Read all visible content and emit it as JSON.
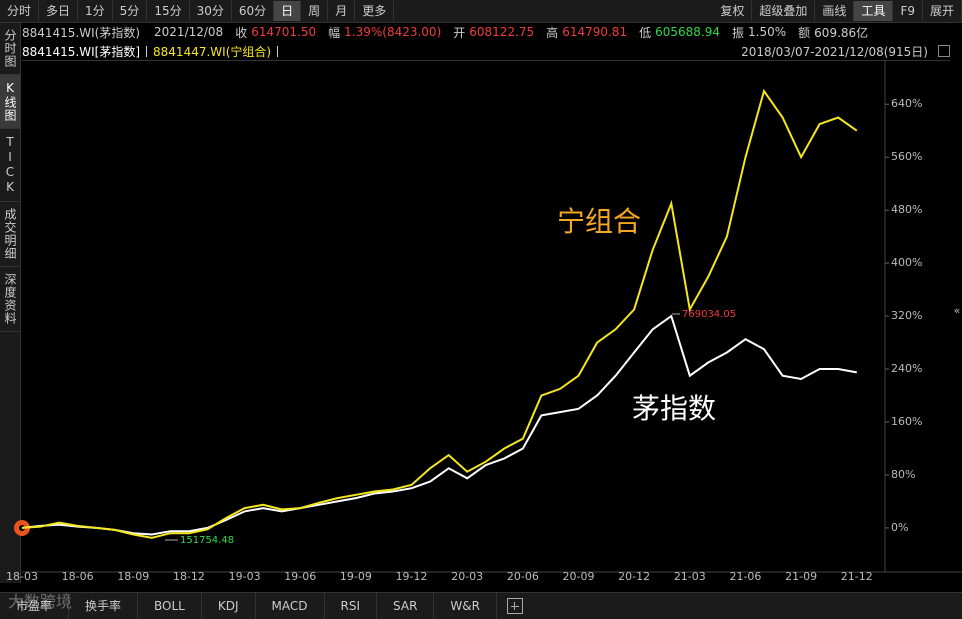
{
  "toolbar": {
    "left": [
      "分时",
      "多日",
      "1分",
      "5分",
      "15分",
      "30分",
      "60分",
      "日",
      "周",
      "月",
      "更多"
    ],
    "right": [
      "复权",
      "超级叠加",
      "画线",
      "工具",
      "F9",
      "展开"
    ]
  },
  "sidebar": [
    "分时图",
    "K线图",
    "TICK",
    "成交明细",
    "深度资料"
  ],
  "quote": {
    "code": "8841415.WI(茅指数)",
    "date": "2021/12/08",
    "fields": [
      {
        "label": "收",
        "value": "614701.50"
      },
      {
        "label": "幅",
        "value": "1.39%(8423.00)"
      },
      {
        "label": "开",
        "value": "608122.75"
      },
      {
        "label": "高",
        "value": "614790.81"
      },
      {
        "label": "低",
        "value": "605688.94"
      },
      {
        "label": "振",
        "value": "1.50%"
      },
      {
        "label": "额",
        "value": "609.86亿"
      }
    ]
  },
  "overlay": {
    "items": [
      "8841415.WI[茅指数]",
      "8841447.WI(宁组合)"
    ],
    "range": "2018/03/07-2021/12/08(915日)"
  },
  "chart_data": {
    "type": "line",
    "categories": [
      "18-03",
      null,
      null,
      "18-06",
      null,
      null,
      "18-09",
      null,
      null,
      "18-12",
      null,
      null,
      "19-03",
      null,
      null,
      "19-06",
      null,
      null,
      "19-09",
      null,
      null,
      "19-12",
      null,
      null,
      "20-03",
      null,
      null,
      "20-06",
      null,
      null,
      "20-09",
      null,
      null,
      "20-12",
      null,
      null,
      "21-03",
      null,
      null,
      "21-06",
      null,
      null,
      "21-09",
      null,
      null,
      "21-12"
    ],
    "series": [
      {
        "name": "茅指数",
        "color": "#ffffff",
        "values": [
          0,
          3,
          5,
          2,
          0,
          -3,
          -8,
          -10,
          -5,
          -5,
          0,
          12,
          25,
          30,
          25,
          30,
          35,
          40,
          45,
          52,
          55,
          60,
          70,
          90,
          75,
          95,
          105,
          120,
          170,
          175,
          180,
          200,
          230,
          265,
          300,
          320,
          230,
          250,
          265,
          285,
          270,
          230,
          225,
          240,
          240,
          235
        ]
      },
      {
        "name": "宁组合",
        "color": "#f5e61e",
        "values": [
          0,
          2,
          8,
          3,
          0,
          -3,
          -10,
          -15,
          -8,
          -8,
          -2,
          15,
          30,
          35,
          28,
          30,
          38,
          45,
          50,
          55,
          58,
          65,
          90,
          110,
          85,
          100,
          120,
          135,
          200,
          210,
          230,
          280,
          300,
          330,
          420,
          490,
          330,
          380,
          440,
          560,
          660,
          620,
          560,
          610,
          620,
          600
        ]
      }
    ],
    "ylim": [
      -56,
      734
    ],
    "yticks": [
      {
        "value": 0,
        "label": "0%"
      },
      {
        "value": 80,
        "label": "80%"
      },
      {
        "value": 160,
        "label": "160%"
      },
      {
        "value": 240,
        "label": "240%"
      },
      {
        "value": 320,
        "label": "320%"
      },
      {
        "value": 400,
        "label": "400%"
      },
      {
        "value": 480,
        "label": "480%"
      },
      {
        "value": 560,
        "label": "560%"
      },
      {
        "value": 640,
        "label": "640%"
      }
    ],
    "grid": false,
    "annotations": [
      "769034.05",
      "151754.48"
    ]
  },
  "bottom_tabs": [
    "市盈率",
    "换手率",
    "BOLL",
    "KDJ",
    "MACD",
    "RSI",
    "SAR",
    "W&R"
  ],
  "watermark": "大数跨境"
}
